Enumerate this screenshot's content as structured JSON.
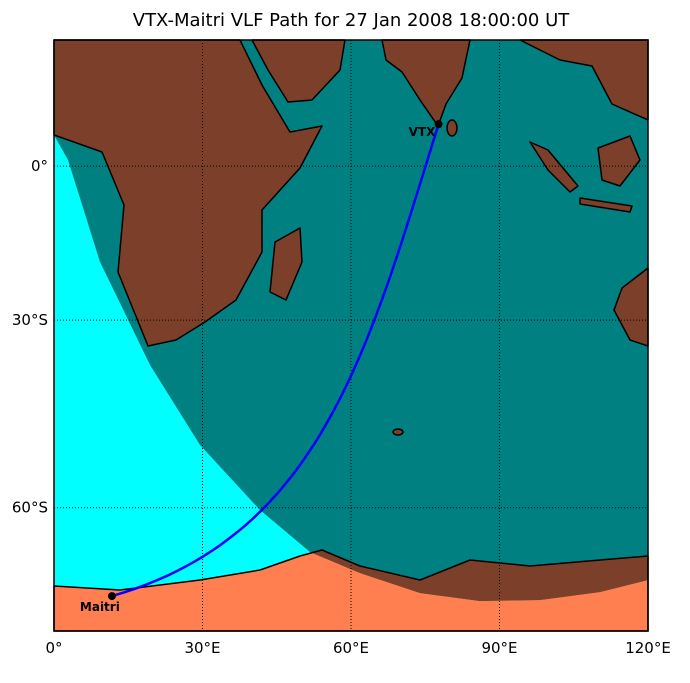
{
  "chart_data": {
    "type": "map",
    "title": "VTX-Maitri VLF Path for 27 Jan 2008 18:00:00 UT",
    "projection": "miller",
    "xlim": [
      0,
      120
    ],
    "ylim": [
      -74.5,
      24.8
    ],
    "xticks": [
      {
        "value": 0,
        "label": "0°"
      },
      {
        "value": 30,
        "label": "30°E"
      },
      {
        "value": 60,
        "label": "60°E"
      },
      {
        "value": 90,
        "label": "90°E"
      },
      {
        "value": 120,
        "label": "120°E"
      }
    ],
    "yticks": [
      {
        "value": 0,
        "label": "0°"
      },
      {
        "value": -30,
        "label": "30°S"
      },
      {
        "value": -60,
        "label": "60°S"
      }
    ],
    "path_color": "#0000ff",
    "stations": [
      {
        "name": "VTX",
        "lon": 77.7,
        "lat": 8.4
      },
      {
        "name": "Maitri",
        "lon": 11.7,
        "lat": -70.8
      }
    ]
  }
}
